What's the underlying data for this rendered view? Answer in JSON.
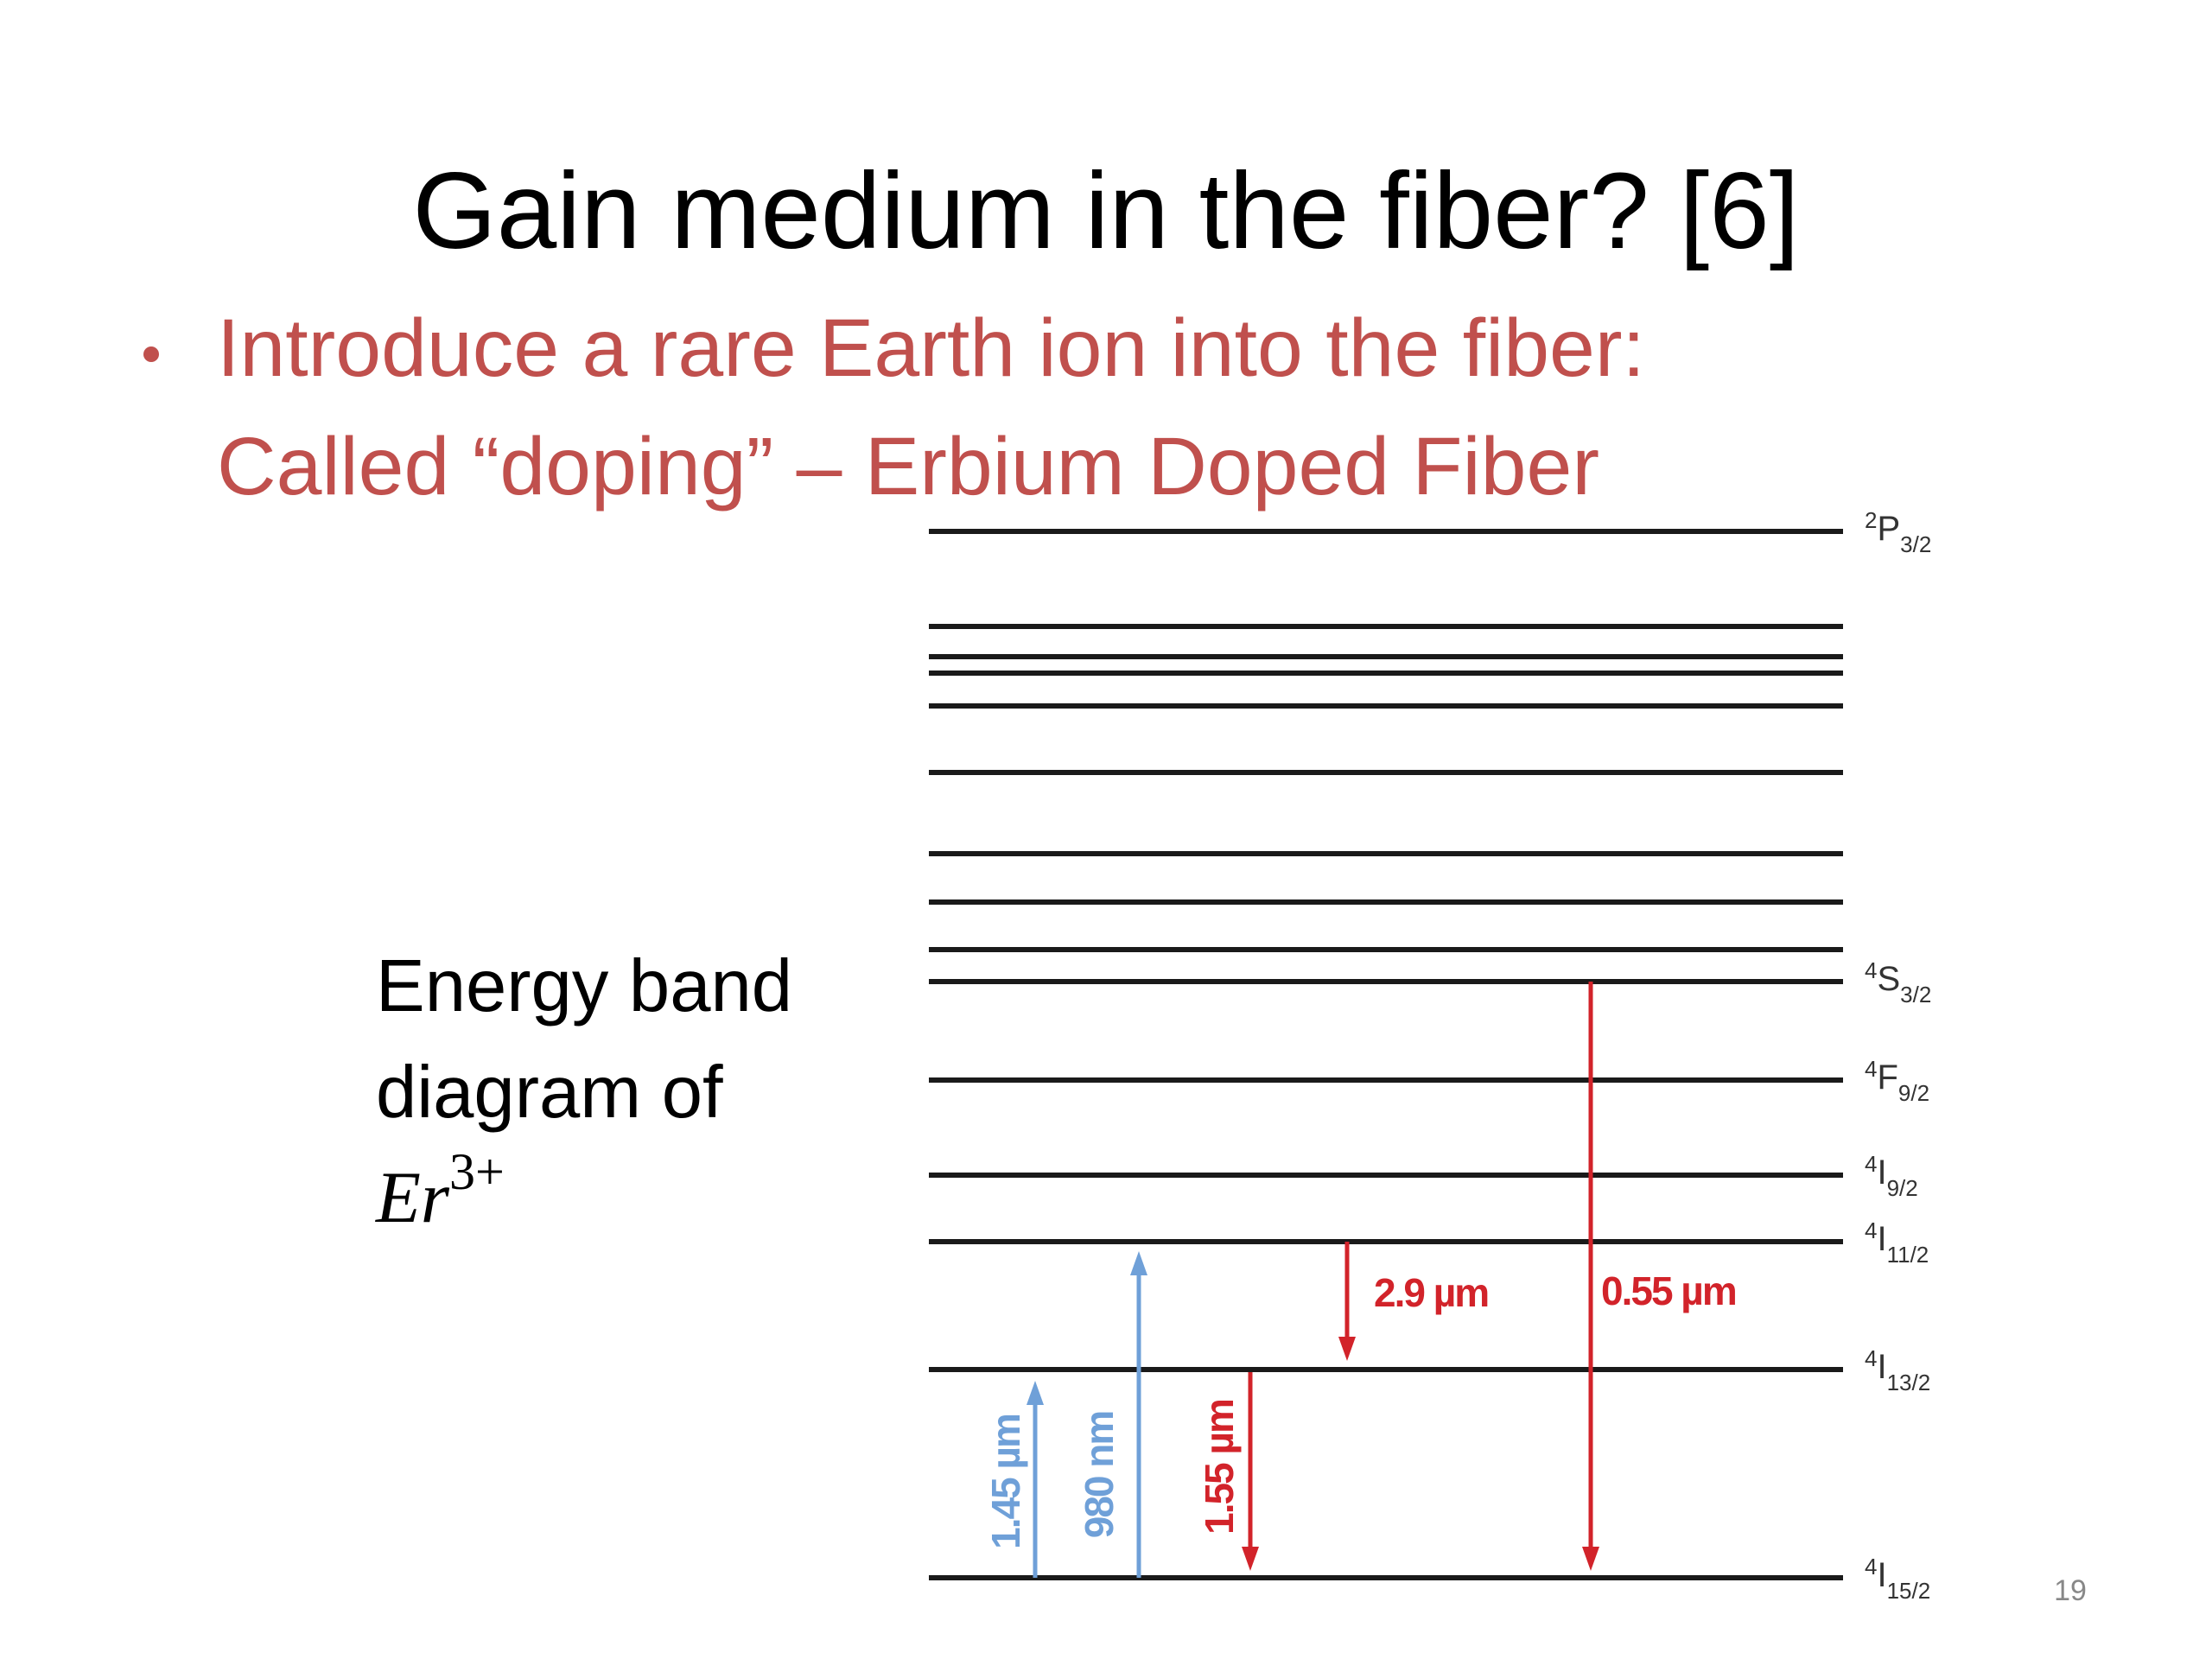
{
  "header": {
    "title": "Gain medium in the fiber? [6]"
  },
  "bullet": {
    "lines": [
      "Introduce a rare Earth ion into the fiber:",
      "Called “doping” – Erbium Doped Fiber"
    ]
  },
  "caption": {
    "lines": [
      "Energy band",
      "diagram of"
    ],
    "math": {
      "base": "Er",
      "sup": "3+"
    }
  },
  "levels": [
    {
      "sup": "2",
      "main": "P",
      "sub": "3/2"
    },
    {
      "sup": "4",
      "main": "S",
      "sub": "3/2"
    },
    {
      "sup": "4",
      "main": "F",
      "sub": "9/2"
    },
    {
      "sup": "4",
      "main": "I",
      "sub": "9/2"
    },
    {
      "sup": "4",
      "main": "I",
      "sub": "11/2"
    },
    {
      "sup": "4",
      "main": "I",
      "sub": "13/2"
    },
    {
      "sup": "4",
      "main": "I",
      "sub": "15/2"
    }
  ],
  "transitions": [
    "1.45 µm",
    "980 nm",
    "1.55 µm",
    "2.9 µm",
    "0.55 µm"
  ],
  "page_number": "19"
}
